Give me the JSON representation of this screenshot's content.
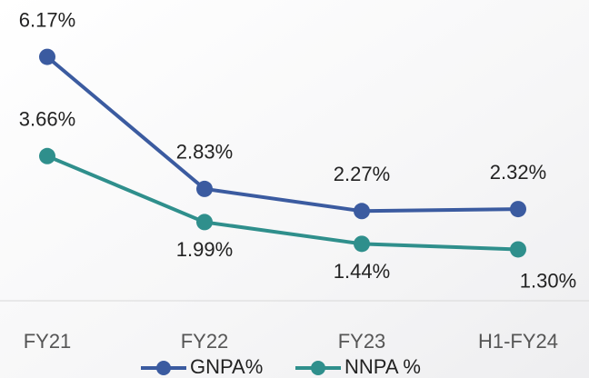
{
  "chart_data": {
    "type": "line",
    "categories": [
      "FY21",
      "FY22",
      "FY23",
      "H1-FY24"
    ],
    "series": [
      {
        "name": "GNPA%",
        "color": "#3b5ba0",
        "values": [
          6.17,
          2.83,
          2.27,
          2.32
        ],
        "value_labels": [
          "6.17%",
          "2.83%",
          "2.27%",
          "2.32%"
        ]
      },
      {
        "name": "NNPA %",
        "color": "#2f8f8c",
        "values": [
          3.66,
          1.99,
          1.44,
          1.3
        ],
        "value_labels": [
          "3.66%",
          "1.99%",
          "1.44%",
          "1.30%"
        ]
      }
    ]
  }
}
